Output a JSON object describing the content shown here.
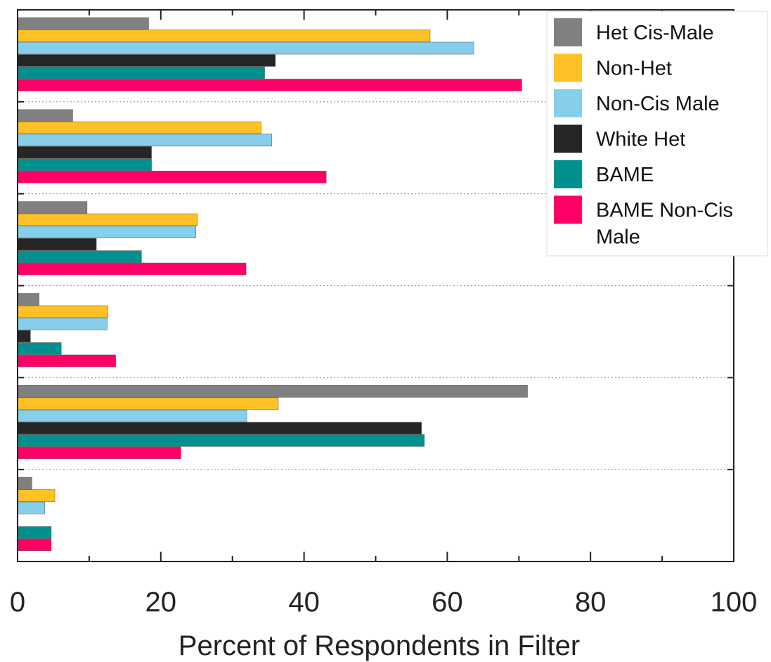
{
  "chart_data": {
    "type": "bar",
    "orientation": "horizontal",
    "title": "",
    "xlabel": "Percent of Respondents in Filter",
    "ylabel": "",
    "xlim": [
      0,
      100
    ],
    "x_ticks": [
      0,
      20,
      40,
      60,
      80,
      100
    ],
    "x_tick_labels": [
      "0",
      "20",
      "40",
      "60",
      "80",
      "100"
    ],
    "categories": [
      "",
      "",
      "",
      "",
      "",
      ""
    ],
    "grid": "dotted horizontal separators between groups",
    "legend_position": "top-right",
    "series": [
      {
        "name": "Het Cis-Male",
        "color": "#808080",
        "values": [
          18.3,
          7.7,
          9.7,
          3.0,
          71.2,
          2.0
        ]
      },
      {
        "name": "Non-Het",
        "color": "#FFC125",
        "values": [
          57.6,
          34.0,
          25.1,
          12.6,
          36.4,
          5.2
        ]
      },
      {
        "name": "Non-Cis Male",
        "color": "#87CEEB",
        "values": [
          63.7,
          35.5,
          24.9,
          12.5,
          32.0,
          3.8
        ]
      },
      {
        "name": "White Het",
        "color": "#262626",
        "values": [
          36.0,
          18.7,
          11.0,
          1.8,
          56.4,
          0
        ]
      },
      {
        "name": "BAME",
        "color": "#009090",
        "values": [
          34.5,
          18.7,
          17.3,
          6.1,
          56.8,
          4.7
        ]
      },
      {
        "name": "BAME Non-Cis Male",
        "color": "#FF0066",
        "values": [
          70.4,
          43.1,
          31.9,
          13.7,
          22.8,
          4.7
        ]
      }
    ]
  }
}
